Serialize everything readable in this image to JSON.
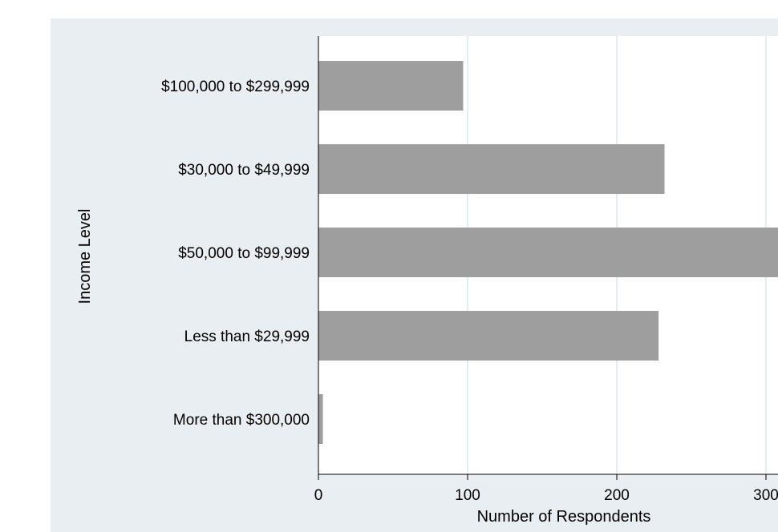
{
  "chart_data": {
    "type": "bar",
    "orientation": "horizontal",
    "categories": [
      "$100,000 to $299,999",
      "$30,000 to $49,999",
      "$50,000 to $99,999",
      "Less than $29,999",
      "More than $300,000"
    ],
    "values": [
      97,
      232,
      310,
      228,
      3
    ],
    "xlabel": "Number of Respondents",
    "ylabel": "Income Level",
    "xticks": [
      0,
      100,
      200,
      300
    ],
    "xtick_labels": [
      "0",
      "100",
      "200",
      "300"
    ],
    "xlim": [
      0,
      306
    ],
    "grid": true,
    "colors": {
      "outer_background": "#e8eef1",
      "plot_background": "#ffffff",
      "bar": "#9e9e9e",
      "grid": "#e6edf0",
      "axis": "#000000"
    }
  }
}
